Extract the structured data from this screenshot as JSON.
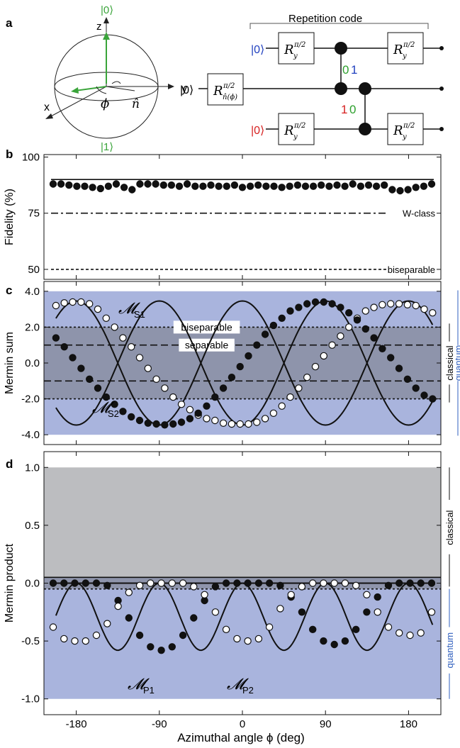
{
  "panel_labels": {
    "a": "a",
    "b": "b",
    "c": "c",
    "d": "d"
  },
  "bloch": {
    "ket0": "|0⟩",
    "ket1": "|1⟩",
    "z": "z",
    "x": "x",
    "y": "y",
    "phi": "ϕ",
    "n": "n̂"
  },
  "circuit": {
    "title": "Repetition code",
    "inputs": [
      "|0⟩",
      "|0⟩",
      "|0⟩"
    ],
    "input_colors": [
      "#1f3fbf",
      "#000000",
      "#d62020"
    ],
    "gate_label": "R",
    "gate_sup": "π/2",
    "gate_sub_y": "y",
    "gate_sub_n": "n̂(ϕ)",
    "bits_a": [
      "0",
      "1"
    ],
    "bits_a_colors": [
      "#2ea02e",
      "#1f3fbf"
    ],
    "bits_b": [
      "1",
      "0"
    ],
    "bits_b_colors": [
      "#d62020",
      "#2ea02e"
    ]
  },
  "colors": {
    "quantum_band": "#a9b4dd",
    "classical_band": "#8e94ab",
    "classical_gray": "#bcbdc0",
    "green": "#3aa43a",
    "label_blue": "#2f5fbf"
  },
  "chart_data": [
    {
      "id": "b",
      "type": "scatter",
      "ylabel": "Fidelity (%)",
      "ylim": [
        50,
        100
      ],
      "yticks": [
        50,
        75,
        100
      ],
      "ytick_labels": [
        "50",
        "75",
        "100"
      ],
      "series": [
        {
          "values": [
            88,
            88,
            87.5,
            87,
            87,
            86.5,
            86,
            87,
            88,
            86.5,
            85.5,
            88,
            88,
            88,
            87.5,
            87.5,
            87,
            88,
            87,
            87,
            87.5,
            87,
            87,
            87.5,
            86.5,
            87,
            87.5,
            87,
            87,
            86.5,
            87,
            87.5,
            87,
            87,
            87.5,
            87,
            87.5,
            87,
            88,
            87,
            87.5,
            87,
            87.5,
            85.5,
            85,
            85.5,
            86.5,
            87,
            88
          ]
        }
      ],
      "reference_lines": [
        {
          "value": 90,
          "style": "solid",
          "label": ""
        },
        {
          "value": 75,
          "style": "dashdot",
          "label": "W-class"
        },
        {
          "value": 50,
          "style": "dashed",
          "label": "biseparable"
        }
      ]
    },
    {
      "id": "c",
      "type": "line",
      "ylabel": "Mermin sum",
      "ylim": [
        -4,
        4
      ],
      "yticks": [
        -4,
        -2,
        0,
        2,
        4
      ],
      "ytick_labels": [
        "-4.0",
        "-2.0",
        "0.0",
        "2.0",
        "4.0"
      ],
      "series": [
        {
          "name": "M_S1",
          "display": "𝓜",
          "sub": "S1",
          "marker": "open",
          "amplitude": 3.46,
          "phase_deg": -90,
          "period_deg": 180,
          "values": [
            3.2,
            3.35,
            3.4,
            3.4,
            3.3,
            3.0,
            2.5,
            2.0,
            1.4,
            0.9,
            0.3,
            -0.3,
            -0.9,
            -1.4,
            -1.9,
            -2.3,
            -2.6,
            -2.9,
            -3.1,
            -3.2,
            -3.35,
            -3.4,
            -3.4,
            -3.4,
            -3.3,
            -3.1,
            -2.8,
            -2.4,
            -1.9,
            -1.4,
            -0.8,
            -0.2,
            0.4,
            1.0,
            1.5,
            2.0,
            2.5,
            2.9,
            3.1,
            3.25,
            3.3,
            3.3,
            3.25,
            3.2,
            3.0,
            2.8
          ]
        },
        {
          "name": "M_S2",
          "display": "𝓜",
          "sub": "S2",
          "marker": "filled",
          "amplitude": 3.46,
          "phase_deg": 0,
          "period_deg": 180,
          "values": [
            1.4,
            0.9,
            0.3,
            -0.3,
            -0.9,
            -1.4,
            -1.9,
            -2.3,
            -2.7,
            -3.0,
            -3.2,
            -3.35,
            -3.4,
            -3.45,
            -3.4,
            -3.3,
            -3.1,
            -2.8,
            -2.4,
            -1.9,
            -1.4,
            -0.8,
            -0.2,
            0.4,
            1.0,
            1.6,
            2.1,
            2.5,
            2.9,
            3.1,
            3.3,
            3.4,
            3.4,
            3.3,
            3.1,
            2.8,
            2.4,
            1.9,
            1.4,
            0.8,
            0.3,
            -0.3,
            -0.9,
            -1.4,
            -1.8,
            -2.0
          ]
        }
      ],
      "reference_lines": [
        {
          "value": 2,
          "style": "dotted",
          "label": "biseparable"
        },
        {
          "value": 1,
          "style": "dashed",
          "label": "separable"
        },
        {
          "value": -1,
          "style": "dashed",
          "label": ""
        },
        {
          "value": -2,
          "style": "dotted",
          "label": ""
        }
      ],
      "right_labels": {
        "classical": "classical",
        "quantum": "quantum"
      }
    },
    {
      "id": "d",
      "type": "line",
      "ylabel": "Mermin product",
      "ylim": [
        -1,
        1
      ],
      "yticks": [
        -1,
        -0.5,
        0,
        0.5,
        1
      ],
      "ytick_labels": [
        "-1.0",
        "-0.5",
        "0.0",
        "0.5",
        "1.0"
      ],
      "series": [
        {
          "name": "M_P1",
          "display": "𝓜",
          "sub": "P1",
          "marker": "filled",
          "values": [
            0,
            0,
            0,
            0,
            0,
            -0.02,
            -0.15,
            -0.3,
            -0.45,
            -0.55,
            -0.58,
            -0.55,
            -0.45,
            -0.3,
            -0.15,
            -0.03,
            0,
            0,
            0,
            0,
            0,
            -0.02,
            -0.12,
            -0.25,
            -0.4,
            -0.5,
            -0.53,
            -0.5,
            -0.4,
            -0.25,
            -0.12,
            -0.02,
            0,
            0,
            0,
            0
          ]
        },
        {
          "name": "M_P2",
          "display": "𝓜",
          "sub": "P2",
          "marker": "open",
          "values": [
            -0.38,
            -0.48,
            -0.5,
            -0.5,
            -0.45,
            -0.35,
            -0.2,
            -0.08,
            -0.02,
            0,
            0,
            0,
            0,
            -0.03,
            -0.1,
            -0.25,
            -0.4,
            -0.48,
            -0.5,
            -0.48,
            -0.38,
            -0.22,
            -0.1,
            -0.03,
            0,
            0,
            0,
            0,
            -0.02,
            -0.1,
            -0.25,
            -0.38,
            -0.43,
            -0.45,
            -0.43,
            -0.25
          ]
        }
      ],
      "reference_lines": [
        {
          "value": 0.05,
          "style": "solid",
          "label": ""
        },
        {
          "value": -0.05,
          "style": "dotted",
          "label": ""
        }
      ],
      "right_labels": {
        "classical": "classical",
        "quantum": "quantum"
      }
    }
  ],
  "xaxis": {
    "label": "Azimuthal angle ϕ (deg)",
    "ticks": [
      -180,
      -90,
      0,
      90,
      180
    ],
    "tick_labels": [
      "-180",
      "-90",
      "0",
      "90",
      "180"
    ],
    "xlim": [
      -215,
      215
    ]
  }
}
